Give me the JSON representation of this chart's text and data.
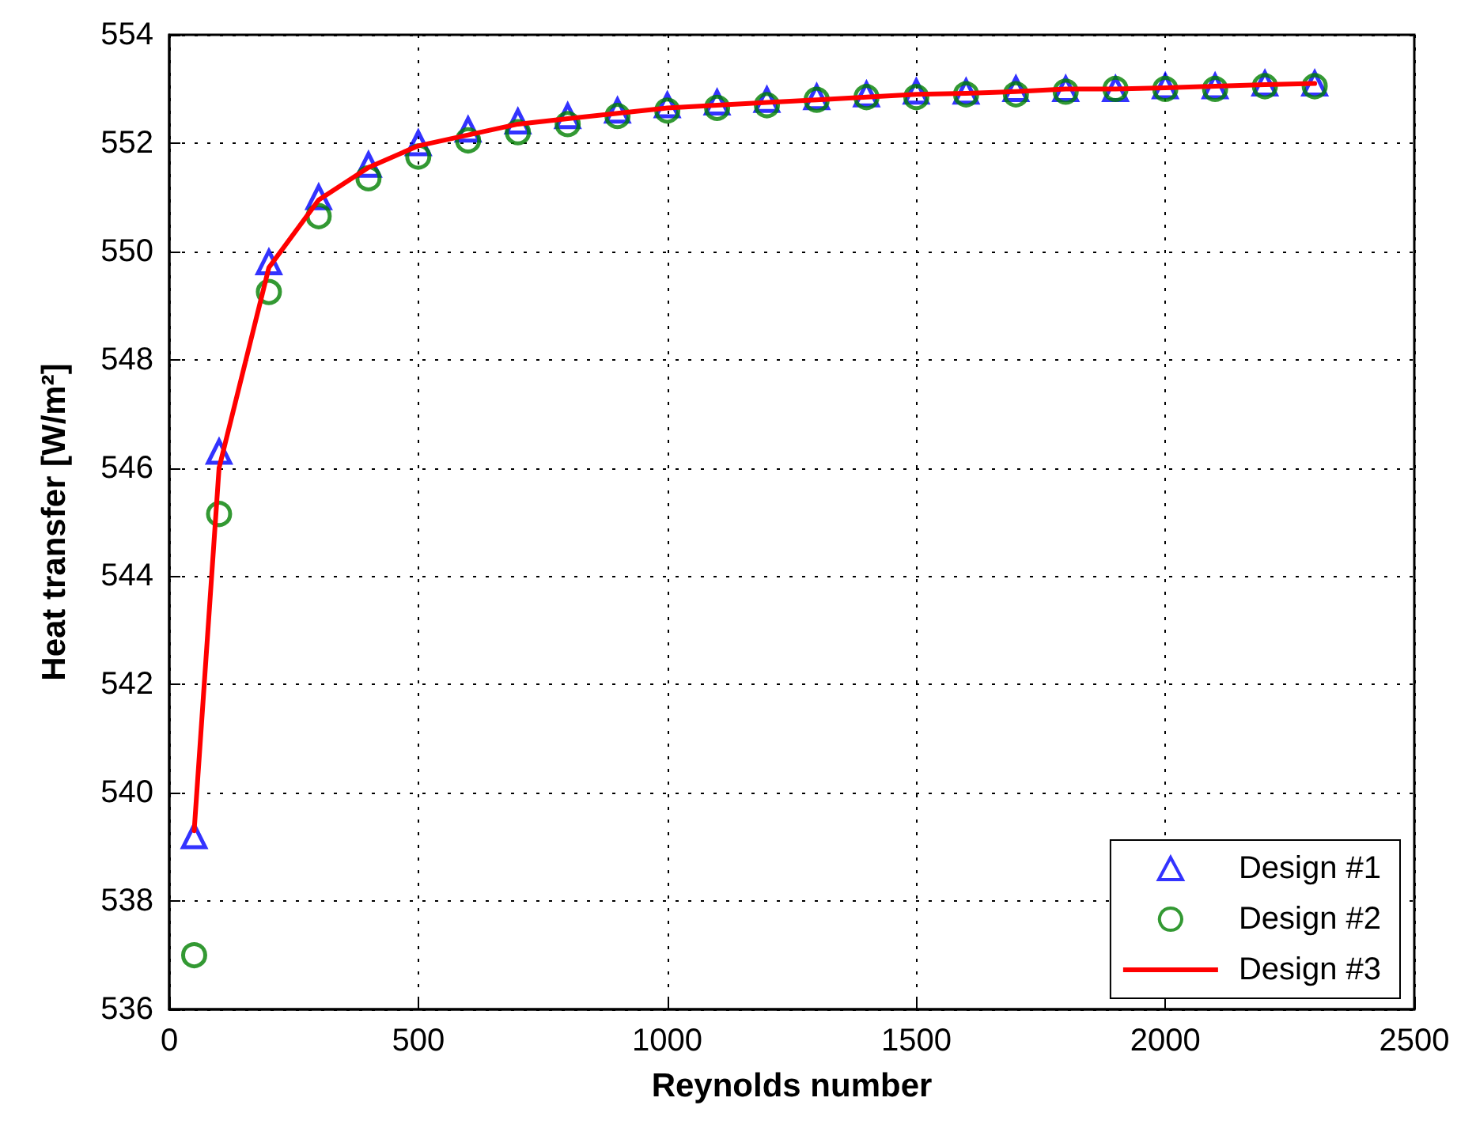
{
  "chart_data": {
    "type": "line",
    "xlabel": "Reynolds number",
    "ylabel": "Heat transfer [W/m²]",
    "xlim": [
      0,
      2500
    ],
    "xticks": [
      0,
      500,
      1000,
      1500,
      2000,
      2500
    ],
    "ylim": [
      536,
      554
    ],
    "yticks": [
      536,
      538,
      540,
      542,
      544,
      546,
      548,
      550,
      552,
      554
    ],
    "grid": true,
    "legend": "bottom right",
    "x": [
      50,
      100,
      200,
      300,
      400,
      500,
      600,
      700,
      800,
      900,
      1000,
      1100,
      1200,
      1300,
      1400,
      1500,
      1600,
      1700,
      1800,
      1900,
      2000,
      2100,
      2200,
      2300
    ],
    "series": [
      {
        "name": "Design #1",
        "type": "scatter",
        "marker": "triangle",
        "color": "#0000ff",
        "values": [
          539.2,
          546.3,
          549.8,
          551.0,
          551.6,
          552.0,
          552.25,
          552.4,
          552.5,
          552.6,
          552.7,
          552.75,
          552.8,
          552.85,
          552.9,
          552.95,
          552.95,
          553.0,
          553.0,
          553.0,
          553.05,
          553.05,
          553.1,
          553.1
        ]
      },
      {
        "name": "Design #2",
        "type": "scatter",
        "marker": "circle",
        "color": "#008000",
        "values": [
          537.0,
          545.15,
          549.25,
          550.65,
          551.35,
          551.75,
          552.05,
          552.2,
          552.35,
          552.5,
          552.6,
          552.65,
          552.7,
          552.8,
          552.85,
          552.85,
          552.9,
          552.9,
          552.95,
          553.0,
          553.0,
          553.0,
          553.05,
          553.05
        ]
      },
      {
        "name": "Design #3",
        "marker": "none",
        "line_style": "solid",
        "color": "#ff0000",
        "values": [
          539.3,
          546.0,
          549.7,
          550.95,
          551.55,
          551.95,
          552.15,
          552.35,
          552.45,
          552.55,
          552.65,
          552.7,
          552.75,
          552.8,
          552.85,
          552.9,
          552.92,
          552.95,
          553.0,
          553.0,
          553.02,
          553.05,
          553.08,
          553.1
        ]
      }
    ]
  }
}
